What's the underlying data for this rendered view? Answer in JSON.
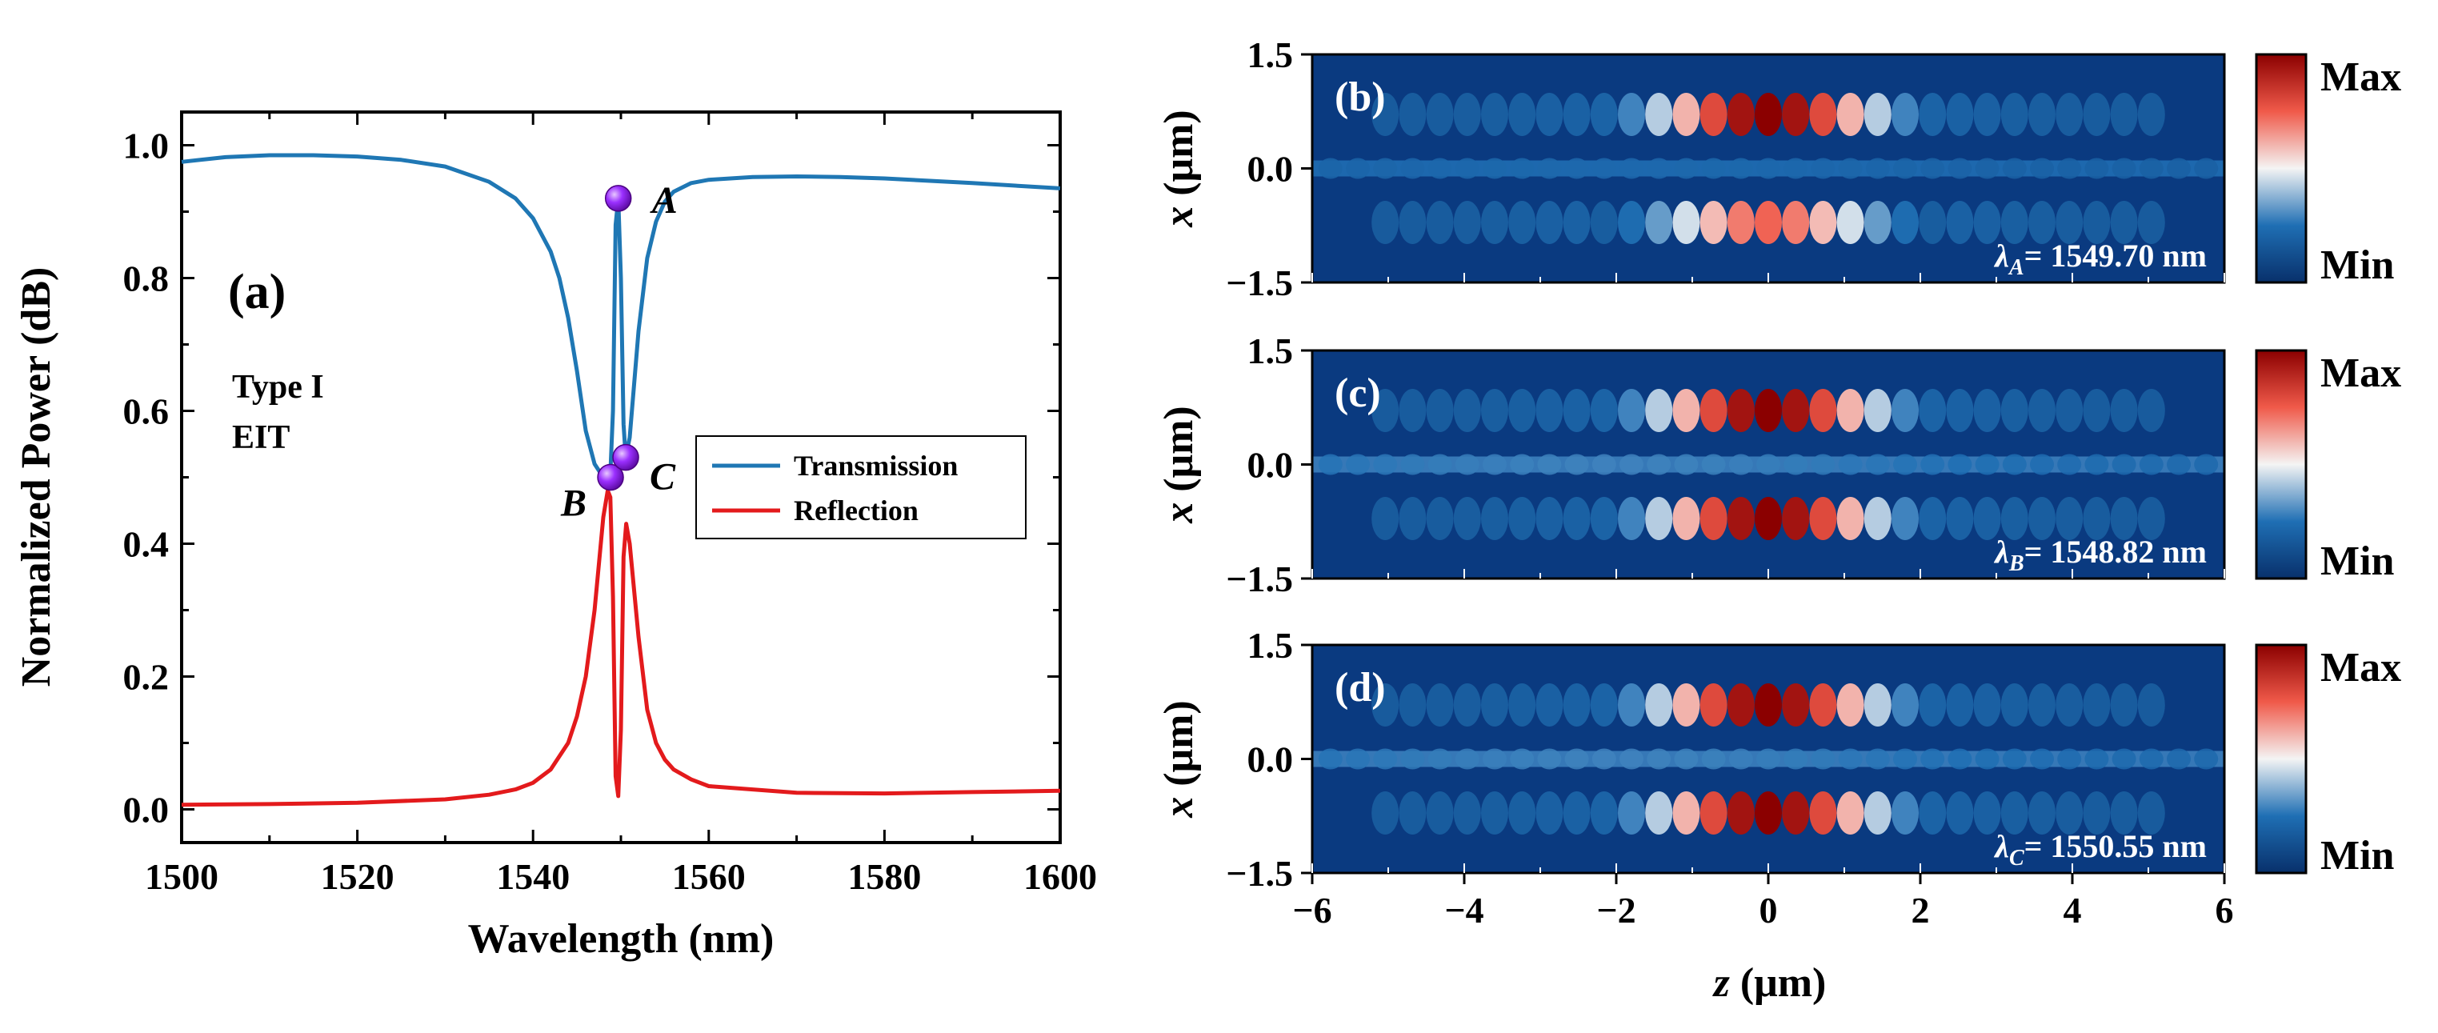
{
  "chart_data": [
    {
      "type": "line",
      "panel_label": "(a)",
      "annotation": [
        "Type I",
        "EIT"
      ],
      "xlabel": "Wavelength (nm)",
      "ylabel": "Normalized Power (dB)",
      "xlim": [
        1500,
        1600
      ],
      "ylim": [
        -0.05,
        1.05
      ],
      "xticks": [
        "1500",
        "1520",
        "1540",
        "1560",
        "1580",
        "1600"
      ],
      "yticks": [
        "0.0",
        "0.2",
        "0.4",
        "0.6",
        "0.8",
        "1.0"
      ],
      "legend_position": "right-center",
      "series": [
        {
          "name": "Transmission",
          "color": "#1f77b4",
          "x": [
            1500,
            1505,
            1510,
            1515,
            1520,
            1525,
            1530,
            1535,
            1538,
            1540,
            1542,
            1543,
            1544,
            1545,
            1546,
            1547,
            1548,
            1548.5,
            1548.8,
            1549.1,
            1549.4,
            1549.7,
            1550.0,
            1550.3,
            1550.55,
            1551,
            1552,
            1553,
            1554,
            1555,
            1556,
            1558,
            1560,
            1565,
            1570,
            1575,
            1580,
            1590,
            1600
          ],
          "y": [
            0.975,
            0.982,
            0.985,
            0.985,
            0.983,
            0.978,
            0.968,
            0.945,
            0.92,
            0.89,
            0.84,
            0.8,
            0.74,
            0.66,
            0.57,
            0.52,
            0.5,
            0.5,
            0.505,
            0.6,
            0.88,
            0.92,
            0.8,
            0.58,
            0.53,
            0.56,
            0.72,
            0.83,
            0.885,
            0.915,
            0.93,
            0.943,
            0.948,
            0.952,
            0.953,
            0.952,
            0.95,
            0.943,
            0.935
          ]
        },
        {
          "name": "Reflection",
          "color": "#e31a1c",
          "x": [
            1500,
            1510,
            1520,
            1530,
            1535,
            1538,
            1540,
            1542,
            1544,
            1545,
            1546,
            1547,
            1548,
            1548.5,
            1548.8,
            1549.1,
            1549.4,
            1549.7,
            1550.0,
            1550.3,
            1550.6,
            1551,
            1552,
            1553,
            1554,
            1555,
            1556,
            1558,
            1560,
            1570,
            1580,
            1590,
            1600
          ],
          "y": [
            0.007,
            0.008,
            0.01,
            0.015,
            0.022,
            0.03,
            0.04,
            0.06,
            0.1,
            0.14,
            0.2,
            0.3,
            0.44,
            0.48,
            0.47,
            0.32,
            0.05,
            0.02,
            0.12,
            0.38,
            0.43,
            0.4,
            0.26,
            0.15,
            0.1,
            0.075,
            0.06,
            0.045,
            0.035,
            0.025,
            0.024,
            0.026,
            0.028
          ]
        }
      ],
      "points": [
        {
          "label": "A",
          "x": 1549.7,
          "y": 0.92
        },
        {
          "label": "B",
          "x": 1548.82,
          "y": 0.5
        },
        {
          "label": "C",
          "x": 1550.55,
          "y": 0.53
        }
      ],
      "marker_color": "#8a2be2"
    },
    {
      "type": "heatmap",
      "panels": [
        {
          "label": "(b)",
          "wavelength_label": "λ",
          "sub": "A",
          "value": "= 1549.70 nm",
          "top_lobe": [
            1.0,
            0.8,
            0.45
          ],
          "guide": 0.3,
          "bottom_lobe": [
            0.7,
            0.5,
            0.3
          ]
        },
        {
          "label": "(c)",
          "wavelength_label": "λ",
          "sub": "B",
          "value": "= 1548.82 nm",
          "top_lobe": [
            1.0,
            0.75,
            0.4
          ],
          "guide": 0.55,
          "bottom_lobe": [
            1.0,
            0.75,
            0.4
          ]
        },
        {
          "label": "(d)",
          "wavelength_label": "λ",
          "sub": "C",
          "value": "= 1550.55 nm",
          "top_lobe": [
            1.0,
            0.75,
            0.4
          ],
          "guide": 0.55,
          "bottom_lobe": [
            1.0,
            0.75,
            0.4
          ]
        }
      ],
      "xlabel": "z (μm)",
      "ylabel": "x (μm)",
      "xlim": [
        -6,
        6
      ],
      "ylim": [
        -1.5,
        1.5
      ],
      "xticks": [
        "−6",
        "−4",
        "−2",
        "0",
        "2",
        "4",
        "6"
      ],
      "yticks": [
        "1.5",
        "0.0",
        "−1.5"
      ],
      "colorbar": {
        "max": "Max",
        "min": "Min"
      }
    }
  ]
}
